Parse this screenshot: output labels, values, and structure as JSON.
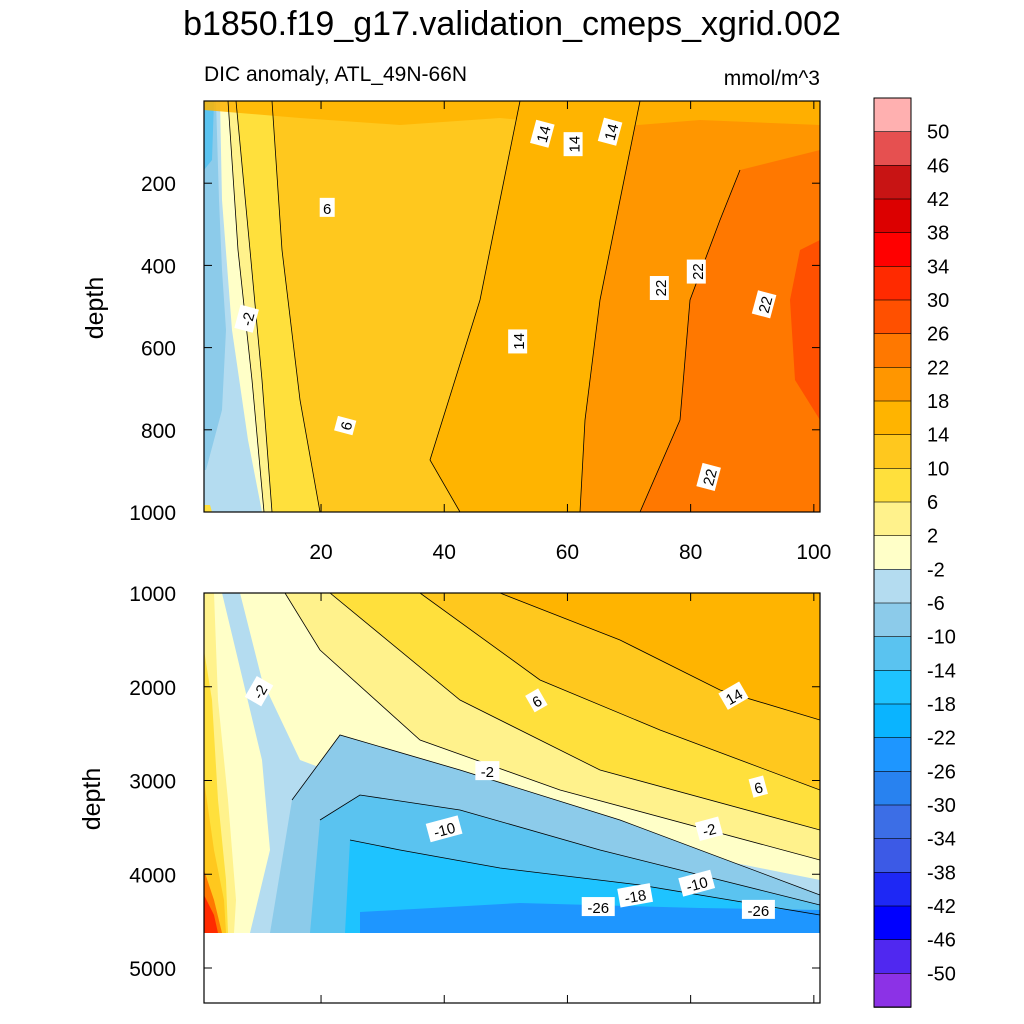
{
  "title": "b1850.f19_g17.validation_cmeps_xgrid.002",
  "subtitle_left": "DIC anomaly, ATL_49N-66N",
  "subtitle_right": "mmol/m^3",
  "chart_data": [
    {
      "type": "heatmap",
      "panel": "upper",
      "ylabel": "depth",
      "xlim": [
        1,
        101
      ],
      "ylim": [
        1000,
        0
      ],
      "xticks": [
        "20",
        "40",
        "60",
        "80",
        "100"
      ],
      "yticks": [
        "200",
        "400",
        "600",
        "800",
        "1000"
      ],
      "contour_labels": [
        "14",
        "14",
        "14",
        "6",
        "-2",
        "22",
        "22",
        "22",
        "14",
        "6",
        "22"
      ]
    },
    {
      "type": "heatmap",
      "panel": "lower",
      "ylabel": "depth",
      "xlim": [
        1,
        101
      ],
      "ylim": [
        5400,
        1000
      ],
      "bottom_depth": 4600,
      "yticks": [
        "1000",
        "2000",
        "3000",
        "4000",
        "5000"
      ],
      "contour_labels": [
        "-2",
        "6",
        "14",
        "-2",
        "6",
        "-10",
        "-2",
        "-10",
        "-18",
        "-26",
        "-26"
      ]
    }
  ],
  "colorbar": {
    "labels": [
      "50",
      "46",
      "42",
      "38",
      "34",
      "30",
      "26",
      "22",
      "18",
      "14",
      "10",
      "6",
      "2",
      "-2",
      "-6",
      "-10",
      "-14",
      "-18",
      "-22",
      "-26",
      "-30",
      "-34",
      "-38",
      "-42",
      "-46",
      "-50"
    ],
    "colors": [
      "#ffb0b0",
      "#e65050",
      "#c81414",
      "#dc0000",
      "#ff0000",
      "#ff2a00",
      "#ff5000",
      "#ff7800",
      "#ff9600",
      "#ffb400",
      "#ffc81e",
      "#ffe03c",
      "#fff28c",
      "#ffffc8",
      "#b4dcf0",
      "#8ccbea",
      "#5ac3f0",
      "#1ec3ff",
      "#0ab4ff",
      "#1e96ff",
      "#2882f0",
      "#3c6ee6",
      "#3c5ae6",
      "#1e28f5",
      "#0000ff",
      "#5028f0",
      "#8c32e6"
    ]
  }
}
